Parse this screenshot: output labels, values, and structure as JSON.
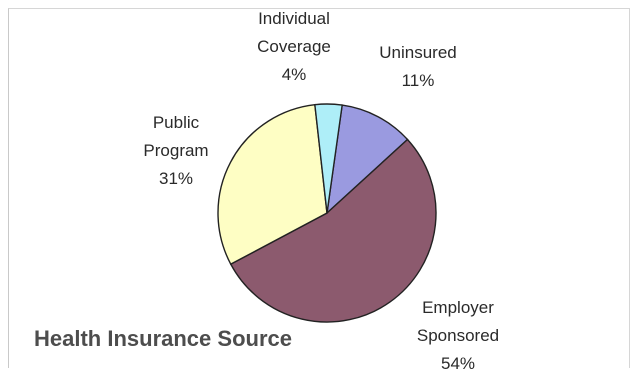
{
  "chart_data": {
    "type": "pie",
    "title": "Health Insurance Source",
    "slices": [
      {
        "label_lines": [
          "Uninsured",
          "11%"
        ],
        "value": 11,
        "color": "#9a9ae0"
      },
      {
        "label_lines": [
          "Employer",
          "Sponsored",
          "54%"
        ],
        "value": 54,
        "color": "#8c5a6e"
      },
      {
        "label_lines": [
          "Public",
          "Program",
          "31%"
        ],
        "value": 31,
        "color": "#fefec4"
      },
      {
        "label_lines": [
          "Individual",
          "Coverage",
          "4%"
        ],
        "value": 4,
        "color": "#aeeef8"
      }
    ],
    "legend": "none"
  }
}
